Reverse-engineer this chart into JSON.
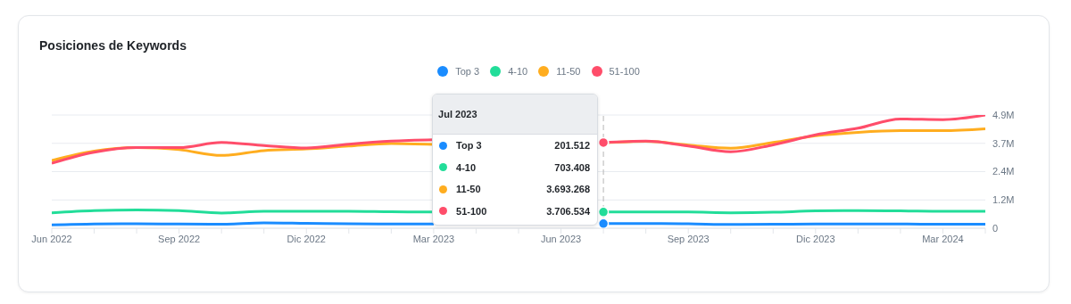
{
  "chart_data": {
    "type": "line",
    "title": "Posiciones de Keywords",
    "x": [
      "2022-06",
      "2022-07",
      "2022-08",
      "2022-09",
      "2022-10",
      "2022-11",
      "2022-12",
      "2023-01",
      "2023-02",
      "2023-03",
      "2023-04",
      "2023-05",
      "2023-06",
      "2023-07",
      "2023-08",
      "2023-09",
      "2023-10",
      "2023-11",
      "2023-12",
      "2024-01",
      "2024-02",
      "2024-03",
      "2024-04"
    ],
    "series": [
      {
        "name": "Top 3",
        "color": "#1a8cff",
        "values": [
          140000,
          180000,
          190000,
          180000,
          170000,
          230000,
          210000,
          190000,
          180000,
          180000,
          null,
          null,
          null,
          201512,
          200000,
          190000,
          160000,
          170000,
          180000,
          180000,
          180000,
          170000,
          170000
        ]
      },
      {
        "name": "4-10",
        "color": "#22dd99",
        "values": [
          670000,
          760000,
          790000,
          760000,
          660000,
          730000,
          730000,
          730000,
          710000,
          700000,
          null,
          null,
          null,
          703408,
          700000,
          700000,
          670000,
          690000,
          750000,
          760000,
          750000,
          730000,
          730000
        ]
      },
      {
        "name": "11-50",
        "color": "#ffad1f",
        "values": [
          2930000,
          3340000,
          3490000,
          3400000,
          3150000,
          3360000,
          3430000,
          3560000,
          3670000,
          3630000,
          null,
          null,
          null,
          3693268,
          3760000,
          3600000,
          3460000,
          3710000,
          4000000,
          4150000,
          4220000,
          4220000,
          4300000
        ]
      },
      {
        "name": "51-100",
        "color": "#ff4d6a",
        "values": [
          2810000,
          3290000,
          3490000,
          3490000,
          3710000,
          3580000,
          3470000,
          3640000,
          3770000,
          3830000,
          null,
          null,
          null,
          3706534,
          3770000,
          3560000,
          3310000,
          3610000,
          4040000,
          4330000,
          4730000,
          4700000,
          4900000
        ]
      }
    ],
    "xlim": [
      "2022-06",
      "2024-04"
    ],
    "xticks": [
      {
        "value": "2022-06",
        "label": "Jun 2022"
      },
      {
        "value": "2022-07",
        "label": null
      },
      {
        "value": "2022-08",
        "label": null
      },
      {
        "value": "2022-09",
        "label": "Sep 2022"
      },
      {
        "value": "2022-10",
        "label": null
      },
      {
        "value": "2022-11",
        "label": null
      },
      {
        "value": "2022-12",
        "label": "Dic 2022"
      },
      {
        "value": "2023-01",
        "label": null
      },
      {
        "value": "2023-02",
        "label": null
      },
      {
        "value": "2023-03",
        "label": "Mar 2023"
      },
      {
        "value": "2023-04",
        "label": null
      },
      {
        "value": "2023-05",
        "label": null
      },
      {
        "value": "2023-06",
        "label": "Jun 2023"
      },
      {
        "value": "2023-07",
        "label": null
      },
      {
        "value": "2023-08",
        "label": null
      },
      {
        "value": "2023-09",
        "label": "Sep 2023"
      },
      {
        "value": "2023-10",
        "label": null
      },
      {
        "value": "2023-11",
        "label": null
      },
      {
        "value": "2023-12",
        "label": "Dic 2023"
      },
      {
        "value": "2024-01",
        "label": null
      },
      {
        "value": "2024-02",
        "label": null
      },
      {
        "value": "2024-03",
        "label": "Mar 2024"
      },
      {
        "value": "2024-04",
        "label": null
      }
    ],
    "ylim": [
      0,
      4900000
    ],
    "yticks": [
      0,
      {
        "value": 1225000,
        "label": "1.2M"
      },
      {
        "value": 2450000,
        "label": "2.4M"
      },
      {
        "value": 3675000,
        "label": "3.7M"
      },
      {
        "value": 4900000,
        "label": "4.9M"
      }
    ],
    "ref_lines": [
      {
        "axis": "x",
        "value": "2023-07",
        "color": "#b5b5b5",
        "line_style": "dashed"
      }
    ],
    "annotations": [
      "Jul 2023",
      "201.512",
      "703.408",
      "3.693.268",
      "3.706.534"
    ],
    "grid": "y",
    "legend": "top",
    "marker": "none",
    "line_style": "solid"
  }
}
